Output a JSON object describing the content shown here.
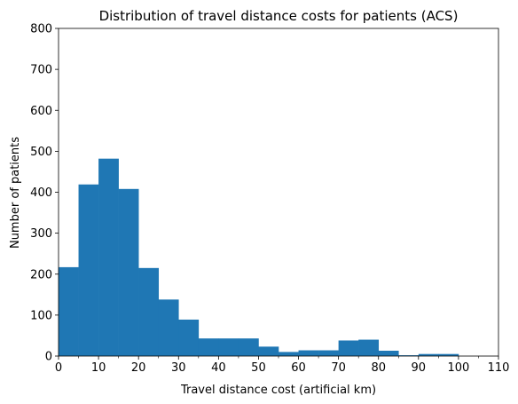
{
  "chart_data": {
    "type": "bar",
    "title": "Distribution of travel distance costs for patients (ACS)",
    "xlabel": "Travel distance cost (artificial km)",
    "ylabel": "Number of patients",
    "xlim": [
      0,
      110
    ],
    "ylim": [
      0,
      800
    ],
    "xticks": [
      "0",
      "10",
      "20",
      "30",
      "40",
      "50",
      "60",
      "70",
      "80",
      "90",
      "100",
      "110"
    ],
    "yticks": [
      "0",
      "100",
      "200",
      "300",
      "400",
      "500",
      "600",
      "700",
      "800"
    ],
    "bar_color": "#1f77b4",
    "bin_width": 5,
    "bins": [
      {
        "start": 0,
        "end": 5,
        "value": 217
      },
      {
        "start": 5,
        "end": 10,
        "value": 419
      },
      {
        "start": 10,
        "end": 15,
        "value": 482
      },
      {
        "start": 15,
        "end": 20,
        "value": 408
      },
      {
        "start": 20,
        "end": 25,
        "value": 215
      },
      {
        "start": 25,
        "end": 30,
        "value": 138
      },
      {
        "start": 30,
        "end": 35,
        "value": 89
      },
      {
        "start": 35,
        "end": 40,
        "value": 43
      },
      {
        "start": 40,
        "end": 45,
        "value": 43
      },
      {
        "start": 45,
        "end": 50,
        "value": 43
      },
      {
        "start": 50,
        "end": 55,
        "value": 23
      },
      {
        "start": 55,
        "end": 60,
        "value": 10
      },
      {
        "start": 60,
        "end": 65,
        "value": 14
      },
      {
        "start": 65,
        "end": 70,
        "value": 14
      },
      {
        "start": 70,
        "end": 75,
        "value": 38
      },
      {
        "start": 75,
        "end": 80,
        "value": 40
      },
      {
        "start": 80,
        "end": 85,
        "value": 13
      },
      {
        "start": 85,
        "end": 90,
        "value": 2
      },
      {
        "start": 90,
        "end": 95,
        "value": 5
      },
      {
        "start": 95,
        "end": 100,
        "value": 5
      },
      {
        "start": 100,
        "end": 105,
        "value": 0
      },
      {
        "start": 105,
        "end": 110,
        "value": 0
      }
    ]
  }
}
